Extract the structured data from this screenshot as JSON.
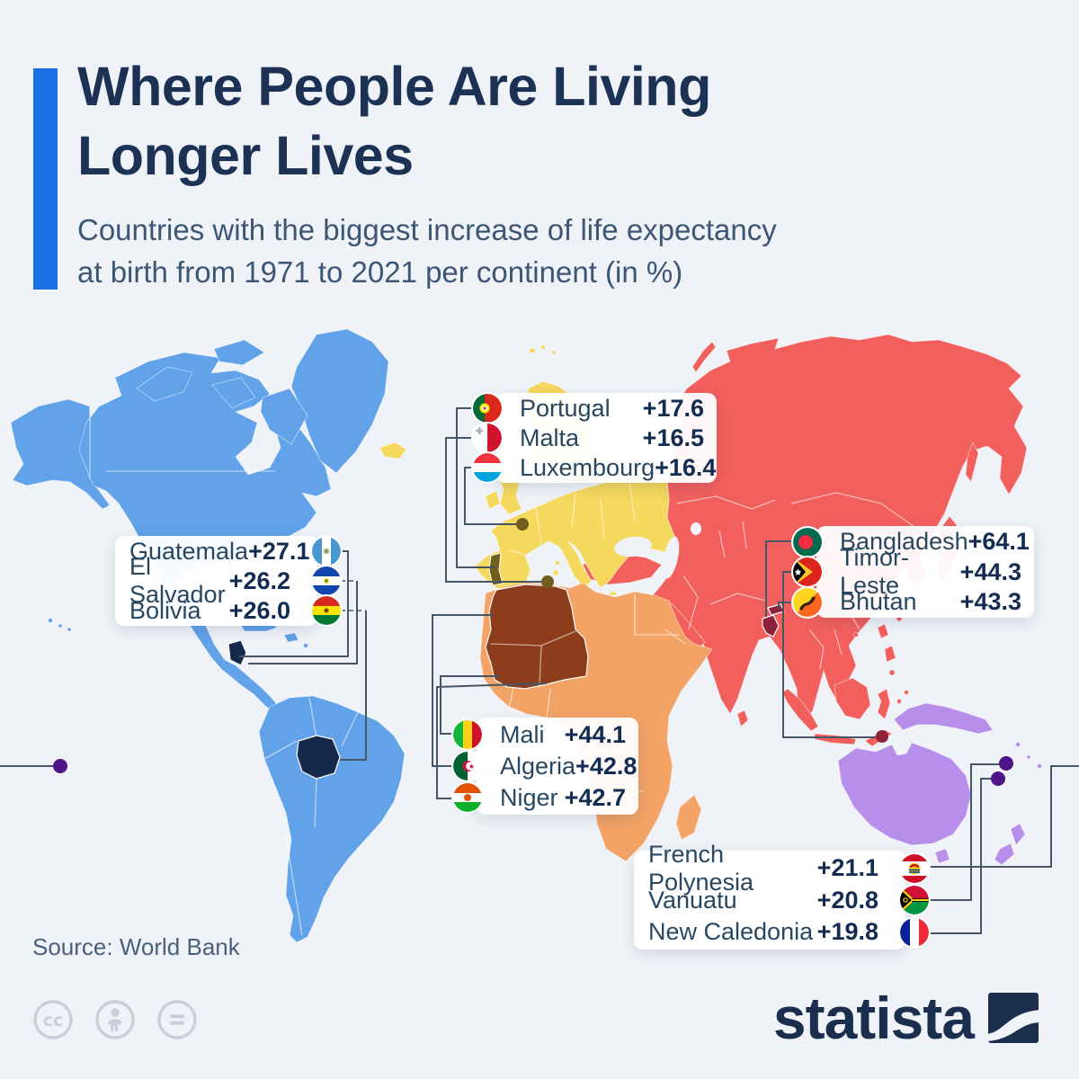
{
  "header": {
    "title_lines": [
      "Where People Are Living",
      "Longer Lives"
    ],
    "subtitle_lines": [
      "Countries with the biggest increase of life expectancy",
      "at birth from 1971 to 2021 per continent (in %)"
    ]
  },
  "callouts": [
    {
      "id": "europe",
      "continent": "Europe",
      "rows": [
        {
          "country": "Portugal",
          "flag": "portugal",
          "value": "+17.6"
        },
        {
          "country": "Malta",
          "flag": "malta",
          "value": "+16.5"
        },
        {
          "country": "Luxembourg",
          "flag": "luxembourg",
          "value": "+16.4"
        }
      ]
    },
    {
      "id": "americas",
      "continent": "Americas",
      "rows": [
        {
          "country": "Guatemala",
          "flag": "guatemala",
          "value": "+27.1"
        },
        {
          "country": "El Salvador",
          "flag": "el-salvador",
          "value": "+26.2"
        },
        {
          "country": "Bolivia",
          "flag": "bolivia",
          "value": "+26.0"
        }
      ]
    },
    {
      "id": "asia",
      "continent": "Asia",
      "rows": [
        {
          "country": "Bangladesh",
          "flag": "bangladesh",
          "value": "+64.1"
        },
        {
          "country": "Timor-Leste",
          "flag": "timor-leste",
          "value": "+44.3"
        },
        {
          "country": "Bhutan",
          "flag": "bhutan",
          "value": "+43.3"
        }
      ]
    },
    {
      "id": "africa",
      "continent": "Africa",
      "rows": [
        {
          "country": "Mali",
          "flag": "mali",
          "value": "+44.1"
        },
        {
          "country": "Algeria",
          "flag": "algeria",
          "value": "+42.8"
        },
        {
          "country": "Niger",
          "flag": "niger",
          "value": "+42.7"
        }
      ]
    },
    {
      "id": "oceania",
      "continent": "Oceania",
      "rows": [
        {
          "country": "French Polynesia",
          "flag": "french-polynesia",
          "value": "+21.1"
        },
        {
          "country": "Vanuatu",
          "flag": "vanuatu",
          "value": "+20.8"
        },
        {
          "country": "New Caledonia",
          "flag": "new-caledonia",
          "value": "+19.8"
        }
      ]
    }
  ],
  "footer": {
    "source": "Source: World Bank",
    "brand": "statista",
    "license_icons": [
      "cc-icon",
      "person-icon",
      "equals-icon"
    ]
  },
  "colors": {
    "accent_bar": "#1A6FE4",
    "title": "#1C3254",
    "subtitle": "#3D5675",
    "background": "#EFF3F8",
    "americas": "#61A2E9",
    "europe": "#F5D85E",
    "africa": "#F3A365",
    "asia": "#F2605E",
    "oceania": "#B78FEA",
    "highlight_navy": "#16294A",
    "highlight_maroon": "#8E2039",
    "highlight_brown": "#8E3D1C",
    "highlight_olive": "#6F5E1E",
    "highlight_purple": "#4F1588",
    "leader_line": "#465668",
    "callout_text": "#274761",
    "callout_value": "#132D52",
    "source_text": "#49607D",
    "brand": "#1B2E4D",
    "license_icon": "#C8CFDA"
  },
  "chart_data": {
    "type": "heatmap",
    "subtype": "world-choropleth-with-callouts",
    "title": "Where People Are Living Longer Lives",
    "subtitle": "Countries with the biggest increase of life expectancy at birth from 1971 to 2021 per continent (in %)",
    "source": "World Bank",
    "legend_position": "none",
    "series": [
      {
        "name": "Europe",
        "categories": [
          "Portugal",
          "Malta",
          "Luxembourg"
        ],
        "values": [
          17.6,
          16.5,
          16.4
        ]
      },
      {
        "name": "Americas",
        "categories": [
          "Guatemala",
          "El Salvador",
          "Bolivia"
        ],
        "values": [
          27.1,
          26.2,
          26.0
        ]
      },
      {
        "name": "Asia",
        "categories": [
          "Bangladesh",
          "Timor-Leste",
          "Bhutan"
        ],
        "values": [
          64.1,
          44.3,
          43.3
        ]
      },
      {
        "name": "Africa",
        "categories": [
          "Mali",
          "Algeria",
          "Niger"
        ],
        "values": [
          44.1,
          42.8,
          42.7
        ]
      },
      {
        "name": "Oceania",
        "categories": [
          "French Polynesia",
          "Vanuatu",
          "New Caledonia"
        ],
        "values": [
          21.1,
          20.8,
          19.8
        ]
      }
    ]
  }
}
